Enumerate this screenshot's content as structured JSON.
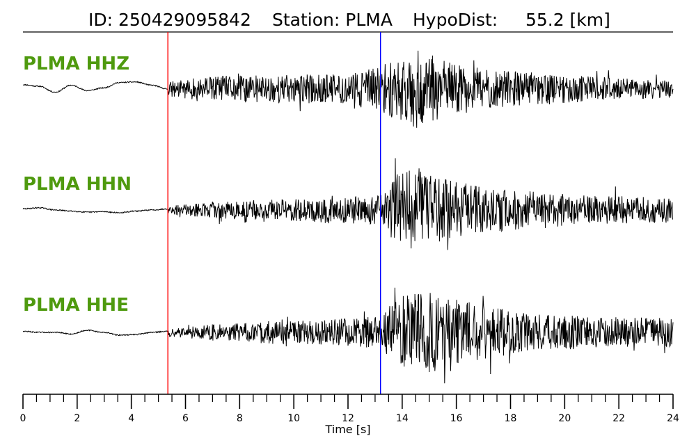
{
  "header": {
    "id_text": "ID: 250429095842",
    "station_text": "Station: PLMA",
    "hypodist_text": "HypoDist:     55.2 [km]"
  },
  "colors": {
    "label": "#4f9a0f",
    "trace": "#000000",
    "p_pick": "#ff0000",
    "s_pick": "#0000ff"
  },
  "chart_data": {
    "type": "line",
    "title": "ID: 250429095842   Station: PLMA   HypoDist:     55.2 [km]",
    "xlabel": "Time [s]",
    "ylabel": "",
    "xlim": [
      0,
      24
    ],
    "x_ticks": [
      "0",
      "2",
      "4",
      "6",
      "8",
      "10",
      "12",
      "14",
      "16",
      "18",
      "20",
      "22",
      "24"
    ],
    "grid": false,
    "picks": [
      {
        "phase": "P",
        "time": 5.35,
        "color": "#ff0000"
      },
      {
        "phase": "S",
        "time": 13.2,
        "color": "#0000ff"
      }
    ],
    "series": [
      {
        "name": "PLMA HHZ",
        "envelope": {
          "t": [
            0,
            5.3,
            5.4,
            6.5,
            8,
            10,
            12,
            13.2,
            14,
            14.6,
            15.5,
            17,
            19,
            21,
            23,
            24
          ],
          "amp": [
            0.03,
            0.03,
            0.18,
            0.28,
            0.35,
            0.35,
            0.38,
            0.55,
            0.85,
            1.0,
            0.7,
            0.5,
            0.4,
            0.3,
            0.25,
            0.22
          ]
        },
        "pre_event_wave": [
          0.08,
          0.05,
          -0.06,
          0.07,
          -0.03,
          0.02,
          0.12,
          0.13,
          0.07,
          0.0
        ]
      },
      {
        "name": "PLMA HHN",
        "envelope": {
          "t": [
            0,
            5.3,
            5.4,
            7,
            9,
            11,
            13.2,
            13.8,
            14.5,
            15.5,
            17,
            19,
            21,
            24
          ],
          "amp": [
            0.03,
            0.03,
            0.1,
            0.2,
            0.25,
            0.3,
            0.35,
            0.85,
            1.0,
            0.75,
            0.55,
            0.45,
            0.35,
            0.3
          ]
        },
        "pre_event_wave": [
          0.02,
          0.04,
          0.0,
          -0.02,
          -0.04,
          -0.03,
          -0.05,
          -0.02,
          0.0,
          0.02
        ]
      },
      {
        "name": "PLMA HHE",
        "envelope": {
          "t": [
            0,
            5.3,
            5.4,
            7,
            9,
            11,
            13.2,
            14,
            15,
            16,
            17.5,
            19,
            21,
            24
          ],
          "amp": [
            0.03,
            0.03,
            0.1,
            0.2,
            0.28,
            0.3,
            0.4,
            0.9,
            1.0,
            0.8,
            0.6,
            0.45,
            0.4,
            0.35
          ]
        },
        "pre_event_wave": [
          0.02,
          0.0,
          0.0,
          -0.03,
          0.04,
          0.0,
          -0.05,
          -0.04,
          0.0,
          0.02
        ]
      }
    ]
  }
}
